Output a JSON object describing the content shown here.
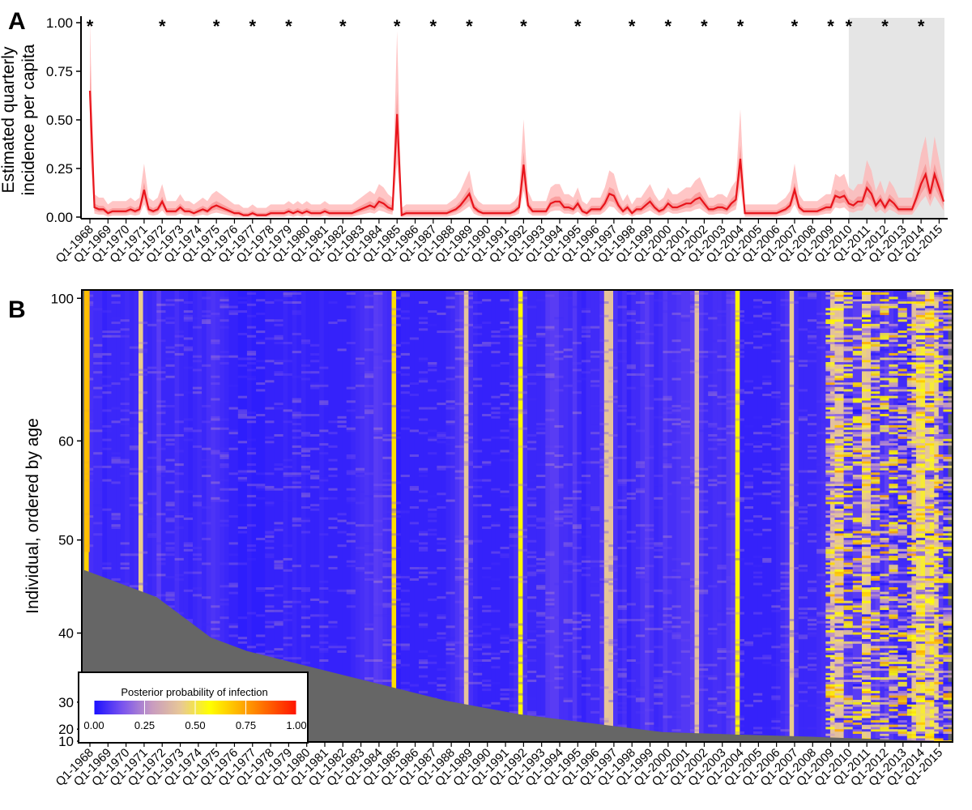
{
  "chart_data": [
    {
      "panel": "A",
      "type": "line",
      "ylabel_line1": "Estimated quarterly",
      "ylabel_line2": "incidence per capita",
      "xlabel": "",
      "ylim": [
        0,
        1
      ],
      "yticks": [
        "0.00",
        "0.25",
        "0.50",
        "0.75",
        "1.00"
      ],
      "ytick_values": [
        0,
        0.25,
        0.5,
        0.75,
        1.0
      ],
      "x_tick_labels": [
        "Q1-1968",
        "Q1-1969",
        "Q1-1970",
        "Q1-1971",
        "Q1-1972",
        "Q1-1973",
        "Q1-1974",
        "Q1-1975",
        "Q1-1976",
        "Q1-1977",
        "Q1-1978",
        "Q1-1979",
        "Q1-1980",
        "Q1-1981",
        "Q1-1982",
        "Q1-1983",
        "Q1-1984",
        "Q1-1985",
        "Q1-1986",
        "Q1-1987",
        "Q1-1988",
        "Q1-1989",
        "Q1-1990",
        "Q1-1991",
        "Q1-1992",
        "Q1-1993",
        "Q1-1994",
        "Q1-1995",
        "Q1-1996",
        "Q1-1997",
        "Q1-1998",
        "Q1-1999",
        "Q1-2000",
        "Q1-2001",
        "Q1-2002",
        "Q1-2003",
        "Q1-2004",
        "Q1-2005",
        "Q1-2006",
        "Q1-2007",
        "Q1-2008",
        "Q1-2009",
        "Q1-2010",
        "Q1-2011",
        "Q1-2012",
        "Q1-2013",
        "Q1-2014",
        "Q1-2015"
      ],
      "star_marker": "*",
      "star_years": [
        1968,
        1972,
        1975,
        1977,
        1979,
        1982,
        1985,
        1987,
        1989,
        1992,
        1995,
        1998,
        2000,
        2002,
        2004,
        2007,
        2009,
        2010,
        2012,
        2014
      ],
      "shaded_period": [
        2010,
        2015.75
      ],
      "series": {
        "name": "Estimated incidence",
        "color": "#e8141b",
        "points": [
          [
            1968.0,
            0.65
          ],
          [
            1968.25,
            0.05
          ],
          [
            1968.5,
            0.04
          ],
          [
            1968.75,
            0.04
          ],
          [
            1969.0,
            0.02
          ],
          [
            1969.25,
            0.03
          ],
          [
            1969.5,
            0.03
          ],
          [
            1969.75,
            0.03
          ],
          [
            1970.0,
            0.03
          ],
          [
            1970.25,
            0.04
          ],
          [
            1970.5,
            0.03
          ],
          [
            1970.75,
            0.04
          ],
          [
            1971.0,
            0.14
          ],
          [
            1971.25,
            0.04
          ],
          [
            1971.5,
            0.03
          ],
          [
            1971.75,
            0.04
          ],
          [
            1972.0,
            0.08
          ],
          [
            1972.25,
            0.03
          ],
          [
            1972.5,
            0.03
          ],
          [
            1972.75,
            0.03
          ],
          [
            1973.0,
            0.05
          ],
          [
            1973.25,
            0.03
          ],
          [
            1973.5,
            0.03
          ],
          [
            1973.75,
            0.02
          ],
          [
            1974.0,
            0.03
          ],
          [
            1974.25,
            0.04
          ],
          [
            1974.5,
            0.03
          ],
          [
            1974.75,
            0.05
          ],
          [
            1975.0,
            0.06
          ],
          [
            1975.25,
            0.05
          ],
          [
            1975.5,
            0.04
          ],
          [
            1975.75,
            0.03
          ],
          [
            1976.0,
            0.02
          ],
          [
            1976.25,
            0.02
          ],
          [
            1976.5,
            0.01
          ],
          [
            1976.75,
            0.01
          ],
          [
            1977.0,
            0.02
          ],
          [
            1977.25,
            0.01
          ],
          [
            1977.5,
            0.01
          ],
          [
            1977.75,
            0.01
          ],
          [
            1978.0,
            0.02
          ],
          [
            1978.25,
            0.02
          ],
          [
            1978.5,
            0.02
          ],
          [
            1978.75,
            0.02
          ],
          [
            1979.0,
            0.03
          ],
          [
            1979.25,
            0.02
          ],
          [
            1979.5,
            0.03
          ],
          [
            1979.75,
            0.02
          ],
          [
            1980.0,
            0.03
          ],
          [
            1980.25,
            0.02
          ],
          [
            1980.5,
            0.02
          ],
          [
            1980.75,
            0.02
          ],
          [
            1981.0,
            0.03
          ],
          [
            1981.25,
            0.02
          ],
          [
            1981.5,
            0.02
          ],
          [
            1981.75,
            0.02
          ],
          [
            1982.0,
            0.02
          ],
          [
            1982.25,
            0.02
          ],
          [
            1982.5,
            0.02
          ],
          [
            1982.75,
            0.03
          ],
          [
            1983.0,
            0.04
          ],
          [
            1983.25,
            0.05
          ],
          [
            1983.5,
            0.06
          ],
          [
            1983.75,
            0.05
          ],
          [
            1984.0,
            0.08
          ],
          [
            1984.25,
            0.07
          ],
          [
            1984.5,
            0.05
          ],
          [
            1984.75,
            0.04
          ],
          [
            1985.0,
            0.53
          ],
          [
            1985.25,
            0.01
          ],
          [
            1985.5,
            0.02
          ],
          [
            1985.75,
            0.02
          ],
          [
            1986.0,
            0.02
          ],
          [
            1986.25,
            0.02
          ],
          [
            1986.5,
            0.02
          ],
          [
            1986.75,
            0.02
          ],
          [
            1987.0,
            0.02
          ],
          [
            1987.25,
            0.02
          ],
          [
            1987.5,
            0.02
          ],
          [
            1987.75,
            0.02
          ],
          [
            1988.0,
            0.03
          ],
          [
            1988.25,
            0.04
          ],
          [
            1988.5,
            0.06
          ],
          [
            1988.75,
            0.09
          ],
          [
            1989.0,
            0.12
          ],
          [
            1989.25,
            0.05
          ],
          [
            1989.5,
            0.03
          ],
          [
            1989.75,
            0.02
          ],
          [
            1990.0,
            0.02
          ],
          [
            1990.25,
            0.02
          ],
          [
            1990.5,
            0.02
          ],
          [
            1990.75,
            0.02
          ],
          [
            1991.0,
            0.02
          ],
          [
            1991.25,
            0.02
          ],
          [
            1991.5,
            0.03
          ],
          [
            1991.75,
            0.05
          ],
          [
            1992.0,
            0.27
          ],
          [
            1992.25,
            0.06
          ],
          [
            1992.5,
            0.03
          ],
          [
            1992.75,
            0.03
          ],
          [
            1993.0,
            0.03
          ],
          [
            1993.25,
            0.03
          ],
          [
            1993.5,
            0.07
          ],
          [
            1993.75,
            0.08
          ],
          [
            1994.0,
            0.08
          ],
          [
            1994.25,
            0.05
          ],
          [
            1994.5,
            0.05
          ],
          [
            1994.75,
            0.04
          ],
          [
            1995.0,
            0.07
          ],
          [
            1995.25,
            0.03
          ],
          [
            1995.5,
            0.02
          ],
          [
            1995.75,
            0.04
          ],
          [
            1996.0,
            0.04
          ],
          [
            1996.25,
            0.04
          ],
          [
            1996.5,
            0.07
          ],
          [
            1996.75,
            0.12
          ],
          [
            1997.0,
            0.11
          ],
          [
            1997.25,
            0.06
          ],
          [
            1997.5,
            0.03
          ],
          [
            1997.75,
            0.05
          ],
          [
            1998.0,
            0.02
          ],
          [
            1998.25,
            0.04
          ],
          [
            1998.5,
            0.04
          ],
          [
            1998.75,
            0.06
          ],
          [
            1999.0,
            0.08
          ],
          [
            1999.25,
            0.05
          ],
          [
            1999.5,
            0.03
          ],
          [
            1999.75,
            0.04
          ],
          [
            2000.0,
            0.07
          ],
          [
            2000.25,
            0.05
          ],
          [
            2000.5,
            0.05
          ],
          [
            2000.75,
            0.06
          ],
          [
            2001.0,
            0.07
          ],
          [
            2001.25,
            0.07
          ],
          [
            2001.5,
            0.09
          ],
          [
            2001.75,
            0.1
          ],
          [
            2002.0,
            0.07
          ],
          [
            2002.25,
            0.04
          ],
          [
            2002.5,
            0.04
          ],
          [
            2002.75,
            0.05
          ],
          [
            2003.0,
            0.05
          ],
          [
            2003.25,
            0.04
          ],
          [
            2003.5,
            0.07
          ],
          [
            2003.75,
            0.09
          ],
          [
            2004.0,
            0.3
          ],
          [
            2004.25,
            0.02
          ],
          [
            2004.5,
            0.02
          ],
          [
            2004.75,
            0.02
          ],
          [
            2005.0,
            0.02
          ],
          [
            2005.25,
            0.02
          ],
          [
            2005.5,
            0.02
          ],
          [
            2005.75,
            0.02
          ],
          [
            2006.0,
            0.02
          ],
          [
            2006.25,
            0.03
          ],
          [
            2006.5,
            0.04
          ],
          [
            2006.75,
            0.06
          ],
          [
            2007.0,
            0.14
          ],
          [
            2007.25,
            0.05
          ],
          [
            2007.5,
            0.03
          ],
          [
            2007.75,
            0.03
          ],
          [
            2008.0,
            0.03
          ],
          [
            2008.25,
            0.03
          ],
          [
            2008.5,
            0.04
          ],
          [
            2008.75,
            0.05
          ],
          [
            2009.0,
            0.05
          ],
          [
            2009.25,
            0.11
          ],
          [
            2009.5,
            0.1
          ],
          [
            2009.75,
            0.11
          ],
          [
            2010.0,
            0.07
          ],
          [
            2010.25,
            0.06
          ],
          [
            2010.5,
            0.08
          ],
          [
            2010.75,
            0.08
          ],
          [
            2011.0,
            0.15
          ],
          [
            2011.25,
            0.12
          ],
          [
            2011.5,
            0.06
          ],
          [
            2011.75,
            0.09
          ],
          [
            2012.0,
            0.05
          ],
          [
            2012.25,
            0.09
          ],
          [
            2012.5,
            0.07
          ],
          [
            2012.75,
            0.04
          ],
          [
            2013.0,
            0.04
          ],
          [
            2013.25,
            0.04
          ],
          [
            2013.5,
            0.04
          ],
          [
            2013.75,
            0.1
          ],
          [
            2014.0,
            0.17
          ],
          [
            2014.25,
            0.22
          ],
          [
            2014.5,
            0.12
          ],
          [
            2014.75,
            0.22
          ],
          [
            2015.0,
            0.15
          ],
          [
            2015.25,
            0.08
          ]
        ]
      }
    },
    {
      "panel": "B",
      "type": "heatmap",
      "ylabel": "Individual, ordered by age",
      "xlabel": "",
      "yticks": [
        "10",
        "20",
        "30",
        "40",
        "50",
        "60",
        "100"
      ],
      "ytick_rows": [
        0,
        16,
        52,
        144,
        268,
        400,
        590
      ],
      "n_rows": 600,
      "x_tick_labels": [
        "Q1-1968",
        "Q1-1969",
        "Q1-1970",
        "Q1-1971",
        "Q1-1972",
        "Q1-1973",
        "Q1-1974",
        "Q1-1975",
        "Q1-1976",
        "Q1-1977",
        "Q1-1978",
        "Q1-1979",
        "Q1-1980",
        "Q1-1981",
        "Q1-1982",
        "Q1-1983",
        "Q1-1984",
        "Q1-1985",
        "Q1-1986",
        "Q1-1987",
        "Q1-1988",
        "Q1-1989",
        "Q1-1990",
        "Q1-1991",
        "Q1-1992",
        "Q1-1993",
        "Q1-1994",
        "Q1-1995",
        "Q1-1996",
        "Q1-1997",
        "Q1-1998",
        "Q1-1999",
        "Q1-2000",
        "Q1-2001",
        "Q1-2002",
        "Q1-2003",
        "Q1-2004",
        "Q1-2005",
        "Q1-2006",
        "Q1-2007",
        "Q1-2008",
        "Q1-2009",
        "Q1-2010",
        "Q1-2011",
        "Q1-2012",
        "Q1-2013",
        "Q1-2014",
        "Q1-2015"
      ],
      "birth_boundary": [
        [
          1968.0,
          0.38
        ],
        [
          1970.0,
          0.35
        ],
        [
          1972.0,
          0.32
        ],
        [
          1975.0,
          0.23
        ],
        [
          1977.0,
          0.2
        ],
        [
          1980.0,
          0.17
        ],
        [
          1982.0,
          0.15
        ],
        [
          1985.0,
          0.12
        ],
        [
          1988.0,
          0.09
        ],
        [
          1992.0,
          0.06
        ],
        [
          1996.0,
          0.04
        ],
        [
          2000.0,
          0.02
        ],
        [
          2004.0,
          0.015
        ],
        [
          2008.0,
          0.01
        ],
        [
          2015.0,
          0.0
        ]
      ],
      "no_data_color": "#666666",
      "legend": {
        "title": "Posterior probability of infection",
        "ticks": [
          "0.00",
          "0.25",
          "0.50",
          "0.75",
          "1.00"
        ],
        "tick_values": [
          0,
          0.25,
          0.5,
          0.75,
          1.0
        ],
        "colors": [
          "#1b10ff",
          "#7b55ee",
          "#c89bc0",
          "#e8c896",
          "#ffff00",
          "#ffb400",
          "#ff6400",
          "#ff1400"
        ]
      }
    }
  ],
  "labels": {
    "panel_a": "A",
    "panel_b": "B"
  }
}
